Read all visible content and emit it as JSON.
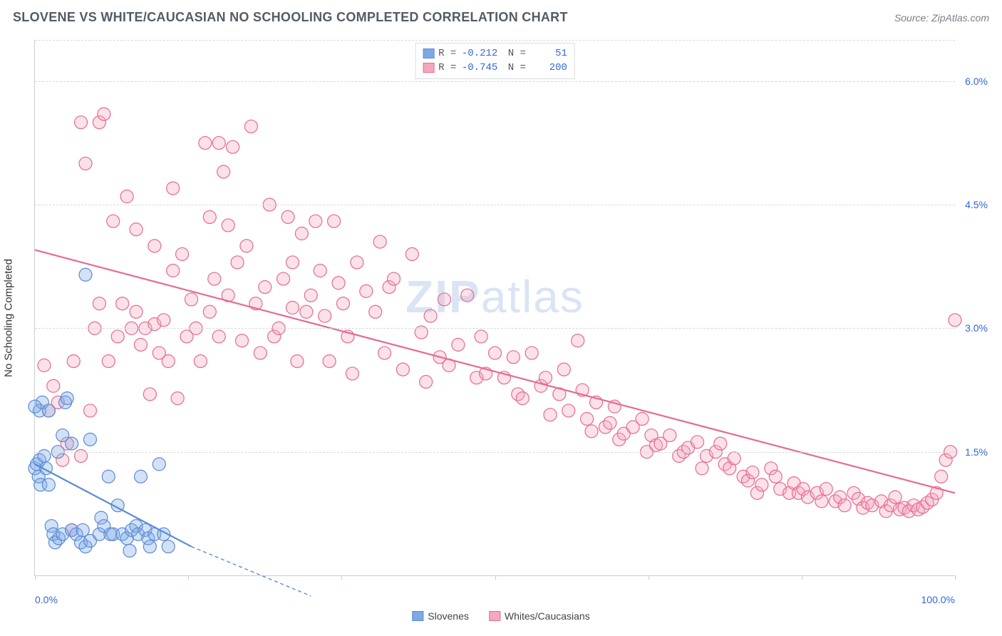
{
  "title": "SLOVENE VS WHITE/CAUCASIAN NO SCHOOLING COMPLETED CORRELATION CHART",
  "source_label": "Source: ZipAtlas.com",
  "y_axis_label": "No Schooling Completed",
  "watermark": {
    "a": "ZIP",
    "b": "atlas"
  },
  "chart": {
    "type": "scatter",
    "xlim": [
      0,
      100
    ],
    "ylim": [
      0,
      6.5
    ],
    "y_ticks": [
      {
        "v": 1.5,
        "label": "1.5%"
      },
      {
        "v": 3.0,
        "label": "3.0%"
      },
      {
        "v": 4.5,
        "label": "4.5%"
      },
      {
        "v": 6.0,
        "label": "6.0%"
      }
    ],
    "x_ticks": [
      0,
      16.67,
      33.33,
      50,
      66.67,
      83.33,
      100
    ],
    "x_tick_labels": {
      "0": "0.0%",
      "100": "100.0%"
    },
    "background_color": "#ffffff",
    "grid_color": "#d6d8db",
    "axis_color": "#c9ccd1",
    "marker_radius": 9,
    "series": [
      {
        "name": "Slovenes",
        "color_fill": "#7fa9e6",
        "color_stroke": "#5a8bd6",
        "R": "-0.212",
        "N": "51",
        "trend": {
          "x1": 0,
          "y1": 1.35,
          "x2": 17,
          "y2": 0.35,
          "dash_x2": 30,
          "dash_y2": -0.25
        },
        "points": [
          [
            0,
            1.3
          ],
          [
            0.2,
            1.35
          ],
          [
            0.4,
            1.2
          ],
          [
            0.6,
            1.1
          ],
          [
            0.5,
            1.4
          ],
          [
            1,
            1.45
          ],
          [
            1.2,
            1.3
          ],
          [
            1.5,
            1.1
          ],
          [
            1.8,
            0.6
          ],
          [
            2,
            0.5
          ],
          [
            2.2,
            0.4
          ],
          [
            2.6,
            0.45
          ],
          [
            3,
            0.5
          ],
          [
            3,
            1.7
          ],
          [
            3.3,
            2.1
          ],
          [
            3.5,
            2.15
          ],
          [
            4,
            0.55
          ],
          [
            4,
            1.6
          ],
          [
            4.5,
            0.5
          ],
          [
            5,
            0.4
          ],
          [
            5.2,
            0.55
          ],
          [
            5.5,
            0.35
          ],
          [
            6,
            0.42
          ],
          [
            6,
            1.65
          ],
          [
            7,
            0.5
          ],
          [
            7.2,
            0.7
          ],
          [
            7.5,
            0.6
          ],
          [
            8,
            1.2
          ],
          [
            8.2,
            0.5
          ],
          [
            8.5,
            0.5
          ],
          [
            9,
            0.85
          ],
          [
            9.5,
            0.5
          ],
          [
            10,
            0.45
          ],
          [
            10.3,
            0.3
          ],
          [
            10.5,
            0.55
          ],
          [
            11,
            0.6
          ],
          [
            11.2,
            0.5
          ],
          [
            11.5,
            1.2
          ],
          [
            12,
            0.55
          ],
          [
            12.3,
            0.45
          ],
          [
            12.5,
            0.35
          ],
          [
            13,
            0.5
          ],
          [
            13.5,
            1.35
          ],
          [
            14,
            0.5
          ],
          [
            14.5,
            0.35
          ],
          [
            5.5,
            3.65
          ],
          [
            0.5,
            2.0
          ],
          [
            0.8,
            2.1
          ],
          [
            1.5,
            2.0
          ],
          [
            2.5,
            1.5
          ],
          [
            0,
            2.05
          ]
        ]
      },
      {
        "name": "Whites/Caucasians",
        "color_fill": "#f3a8bd",
        "color_stroke": "#e76a93",
        "R": "-0.745",
        "N": "200",
        "trend": {
          "x1": 0,
          "y1": 3.95,
          "x2": 100,
          "y2": 1.0
        },
        "points": [
          [
            1,
            2.55
          ],
          [
            1.5,
            2.0
          ],
          [
            2,
            2.3
          ],
          [
            2.5,
            2.1
          ],
          [
            3,
            1.4
          ],
          [
            3.5,
            1.6
          ],
          [
            4,
            0.55
          ],
          [
            4.2,
            2.6
          ],
          [
            5,
            1.45
          ],
          [
            5,
            5.5
          ],
          [
            5.5,
            5.0
          ],
          [
            6,
            2.0
          ],
          [
            6.5,
            3.0
          ],
          [
            7,
            3.3
          ],
          [
            7,
            5.5
          ],
          [
            7.5,
            5.6
          ],
          [
            8,
            2.6
          ],
          [
            8.5,
            4.3
          ],
          [
            9,
            2.9
          ],
          [
            9.5,
            3.3
          ],
          [
            10,
            4.6
          ],
          [
            10.5,
            3.0
          ],
          [
            11,
            4.2
          ],
          [
            11,
            3.2
          ],
          [
            11.5,
            2.8
          ],
          [
            12,
            3.0
          ],
          [
            12.5,
            2.2
          ],
          [
            13,
            3.05
          ],
          [
            13,
            4.0
          ],
          [
            13.5,
            2.7
          ],
          [
            14,
            3.1
          ],
          [
            14.5,
            2.6
          ],
          [
            15,
            4.7
          ],
          [
            15,
            3.7
          ],
          [
            15.5,
            2.15
          ],
          [
            16,
            3.9
          ],
          [
            16.5,
            2.9
          ],
          [
            17,
            3.35
          ],
          [
            17.5,
            3.0
          ],
          [
            18,
            2.6
          ],
          [
            18.5,
            5.25
          ],
          [
            19,
            3.2
          ],
          [
            19,
            4.35
          ],
          [
            19.5,
            3.6
          ],
          [
            20,
            5.25
          ],
          [
            20,
            2.9
          ],
          [
            20.5,
            4.9
          ],
          [
            21,
            3.4
          ],
          [
            21,
            4.25
          ],
          [
            21.5,
            5.2
          ],
          [
            22,
            3.8
          ],
          [
            22.5,
            2.85
          ],
          [
            23,
            4.0
          ],
          [
            23.5,
            5.45
          ],
          [
            24,
            3.3
          ],
          [
            24.5,
            2.7
          ],
          [
            25,
            3.5
          ],
          [
            25.5,
            4.5
          ],
          [
            26,
            2.9
          ],
          [
            26.5,
            3.0
          ],
          [
            27,
            3.6
          ],
          [
            27.5,
            4.35
          ],
          [
            28,
            3.25
          ],
          [
            28,
            3.8
          ],
          [
            28.5,
            2.6
          ],
          [
            29,
            4.15
          ],
          [
            29.5,
            3.2
          ],
          [
            30,
            3.4
          ],
          [
            30.5,
            4.3
          ],
          [
            31,
            3.7
          ],
          [
            31.5,
            3.15
          ],
          [
            32,
            2.6
          ],
          [
            32.5,
            4.3
          ],
          [
            33,
            3.55
          ],
          [
            33.5,
            3.3
          ],
          [
            34,
            2.9
          ],
          [
            34.5,
            2.45
          ],
          [
            35,
            3.8
          ],
          [
            36,
            3.45
          ],
          [
            37,
            3.2
          ],
          [
            37.5,
            4.05
          ],
          [
            38,
            2.7
          ],
          [
            38.5,
            3.5
          ],
          [
            39,
            3.6
          ],
          [
            40,
            2.5
          ],
          [
            41,
            3.9
          ],
          [
            42,
            2.95
          ],
          [
            42.5,
            2.35
          ],
          [
            43,
            3.15
          ],
          [
            44,
            2.65
          ],
          [
            44.5,
            3.35
          ],
          [
            45,
            2.55
          ],
          [
            46,
            2.8
          ],
          [
            47,
            3.4
          ],
          [
            48,
            2.4
          ],
          [
            48.5,
            2.9
          ],
          [
            49,
            2.45
          ],
          [
            50,
            2.7
          ],
          [
            51,
            2.4
          ],
          [
            52,
            2.65
          ],
          [
            52.5,
            2.2
          ],
          [
            53,
            2.15
          ],
          [
            54,
            2.7
          ],
          [
            55,
            2.3
          ],
          [
            55.5,
            2.4
          ],
          [
            56,
            1.95
          ],
          [
            57,
            2.2
          ],
          [
            57.5,
            2.5
          ],
          [
            58,
            2.0
          ],
          [
            59,
            2.85
          ],
          [
            59.5,
            2.25
          ],
          [
            60,
            1.9
          ],
          [
            60.5,
            1.75
          ],
          [
            61,
            2.1
          ],
          [
            62,
            1.8
          ],
          [
            62.5,
            1.85
          ],
          [
            63,
            2.05
          ],
          [
            63.5,
            1.65
          ],
          [
            64,
            1.72
          ],
          [
            65,
            1.8
          ],
          [
            66,
            1.9
          ],
          [
            66.5,
            1.5
          ],
          [
            67,
            1.7
          ],
          [
            67.5,
            1.58
          ],
          [
            68,
            1.6
          ],
          [
            69,
            1.7
          ],
          [
            70,
            1.45
          ],
          [
            70.5,
            1.5
          ],
          [
            71,
            1.55
          ],
          [
            72,
            1.62
          ],
          [
            72.5,
            1.3
          ],
          [
            73,
            1.45
          ],
          [
            74,
            1.5
          ],
          [
            74.5,
            1.6
          ],
          [
            75,
            1.35
          ],
          [
            75.5,
            1.3
          ],
          [
            76,
            1.42
          ],
          [
            77,
            1.2
          ],
          [
            77.5,
            1.15
          ],
          [
            78,
            1.25
          ],
          [
            78.5,
            1.0
          ],
          [
            79,
            1.1
          ],
          [
            80,
            1.3
          ],
          [
            80.5,
            1.2
          ],
          [
            81,
            1.05
          ],
          [
            82,
            1.0
          ],
          [
            82.5,
            1.12
          ],
          [
            83,
            1.0
          ],
          [
            83.5,
            1.05
          ],
          [
            84,
            0.95
          ],
          [
            85,
            1.0
          ],
          [
            85.5,
            0.9
          ],
          [
            86,
            1.05
          ],
          [
            87,
            0.9
          ],
          [
            87.5,
            0.95
          ],
          [
            88,
            0.85
          ],
          [
            89,
            1.0
          ],
          [
            89.5,
            0.93
          ],
          [
            90,
            0.82
          ],
          [
            90.5,
            0.88
          ],
          [
            91,
            0.85
          ],
          [
            92,
            0.9
          ],
          [
            92.5,
            0.78
          ],
          [
            93,
            0.85
          ],
          [
            93.5,
            0.95
          ],
          [
            94,
            0.8
          ],
          [
            94.5,
            0.82
          ],
          [
            95,
            0.78
          ],
          [
            95.5,
            0.85
          ],
          [
            96,
            0.8
          ],
          [
            96.5,
            0.83
          ],
          [
            97,
            0.88
          ],
          [
            97.5,
            0.92
          ],
          [
            98,
            1.0
          ],
          [
            98.5,
            1.2
          ],
          [
            99,
            1.4
          ],
          [
            99.5,
            1.5
          ],
          [
            100,
            3.1
          ]
        ]
      }
    ]
  },
  "legend_bottom": [
    {
      "label": "Slovenes",
      "fill": "#7fa9e6",
      "stroke": "#5a8bd6"
    },
    {
      "label": "Whites/Caucasians",
      "fill": "#f3a8bd",
      "stroke": "#e76a93"
    }
  ]
}
